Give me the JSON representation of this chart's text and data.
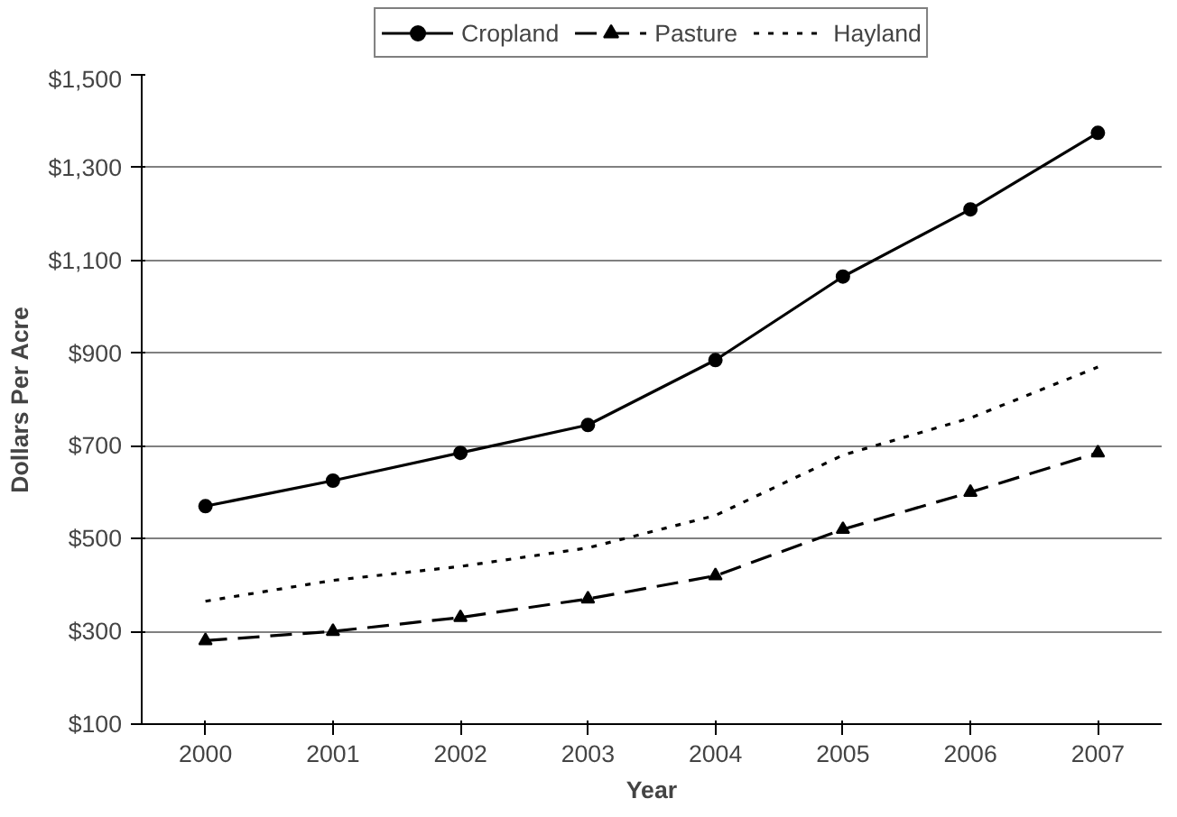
{
  "chart_data": {
    "type": "line",
    "xlabel": "Year",
    "ylabel": "Dollars Per Acre",
    "categories": [
      "2000",
      "2001",
      "2002",
      "2003",
      "2004",
      "2005",
      "2006",
      "2007"
    ],
    "series": [
      {
        "name": "Cropland",
        "color": "#000000",
        "marker": "circle",
        "line_style": "solid",
        "values": [
          570,
          625,
          685,
          745,
          885,
          1065,
          1210,
          1375
        ]
      },
      {
        "name": "Pasture",
        "color": "#000000",
        "marker": "triangle",
        "line_style": "dashed",
        "values": [
          280,
          300,
          330,
          370,
          420,
          520,
          600,
          685
        ]
      },
      {
        "name": "Hayland",
        "color": "#000000",
        "marker": "none",
        "line_style": "dotted",
        "values": [
          365,
          410,
          440,
          480,
          550,
          680,
          760,
          870
        ]
      }
    ],
    "ylim": [
      100,
      1500
    ],
    "yticks": [
      {
        "value": 100,
        "label": "$100"
      },
      {
        "value": 300,
        "label": "$300"
      },
      {
        "value": 500,
        "label": "$500"
      },
      {
        "value": 700,
        "label": "$700"
      },
      {
        "value": 900,
        "label": "$900"
      },
      {
        "value": 1100,
        "label": "$1,100"
      },
      {
        "value": 1300,
        "label": "$1,300"
      },
      {
        "value": 1500,
        "label": "$1,500"
      }
    ],
    "grid": "y",
    "legend": "top"
  }
}
